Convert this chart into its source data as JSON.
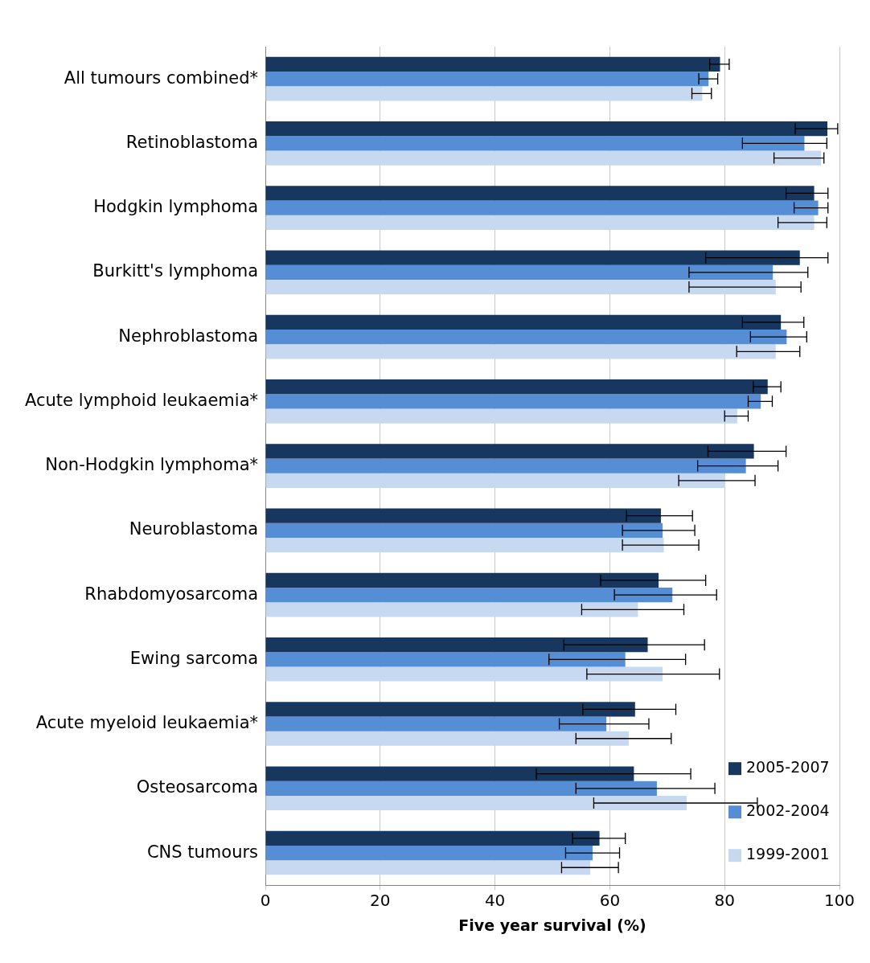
{
  "chart_data": {
    "type": "bar",
    "orientation": "horizontal",
    "xlabel": "Five year survival (%)",
    "categories": [
      "All tumours combined*",
      "Retinoblastoma",
      "Hodgkin lymphoma",
      "Burkitt's lymphoma",
      "Nephroblastoma",
      "Acute lymphoid leukaemia*",
      "Non-Hodgkin lymphoma*",
      "Neuroblastoma",
      "Rhabdomyosarcoma",
      "Ewing sarcoma",
      "Acute myeloid leukaemia*",
      "Osteosarcoma",
      "CNS tumours"
    ],
    "series": [
      {
        "name": "2005-2007",
        "color": "#17375e",
        "values": [
          79.2,
          97.9,
          95.6,
          93.1,
          89.8,
          87.5,
          85.1,
          68.9,
          68.5,
          66.6,
          64.4,
          64.2,
          58.2
        ],
        "errors": [
          [
            77.4,
            80.8
          ],
          [
            92.3,
            99.7
          ],
          [
            90.7,
            98.0
          ],
          [
            76.7,
            98.0
          ],
          [
            83.1,
            93.8
          ],
          [
            85.0,
            89.8
          ],
          [
            77.1,
            90.7
          ],
          [
            62.9,
            74.4
          ],
          [
            58.4,
            76.7
          ],
          [
            52.0,
            76.5
          ],
          [
            55.3,
            71.5
          ],
          [
            47.2,
            74.1
          ],
          [
            53.5,
            62.7
          ]
        ]
      },
      {
        "name": "2002-2004",
        "color": "#558ed5",
        "values": [
          77.2,
          93.9,
          96.3,
          88.4,
          90.8,
          86.3,
          83.7,
          69.2,
          70.9,
          62.7,
          59.4,
          68.2,
          57.0
        ],
        "errors": [
          [
            75.5,
            78.8
          ],
          [
            83.1,
            97.8
          ],
          [
            92.1,
            98.0
          ],
          [
            73.8,
            94.5
          ],
          [
            84.5,
            94.3
          ],
          [
            84.1,
            88.3
          ],
          [
            75.3,
            89.3
          ],
          [
            62.2,
            74.8
          ],
          [
            60.8,
            78.6
          ],
          [
            49.4,
            73.2
          ],
          [
            51.2,
            66.8
          ],
          [
            54.1,
            78.3
          ],
          [
            52.3,
            61.7
          ]
        ]
      },
      {
        "name": "1999-2001",
        "color": "#c6d9f1",
        "values": [
          76.1,
          96.8,
          95.6,
          88.9,
          88.9,
          82.2,
          80.1,
          69.4,
          64.9,
          69.2,
          63.3,
          73.4,
          56.6
        ],
        "errors": [
          [
            74.3,
            77.7
          ],
          [
            88.6,
            97.3
          ],
          [
            89.3,
            97.8
          ],
          [
            73.8,
            93.3
          ],
          [
            82.1,
            93.1
          ],
          [
            80.0,
            84.1
          ],
          [
            72.0,
            85.3
          ],
          [
            62.2,
            75.5
          ],
          [
            55.1,
            72.9
          ],
          [
            56.0,
            79.1
          ],
          [
            54.1,
            70.7
          ],
          [
            57.2,
            85.7
          ],
          [
            51.6,
            61.5
          ]
        ]
      }
    ],
    "xlim": [
      0,
      100
    ],
    "xticks": [
      0,
      20,
      40,
      60,
      80,
      100
    ],
    "grid": "x",
    "legend": "bottom right"
  }
}
